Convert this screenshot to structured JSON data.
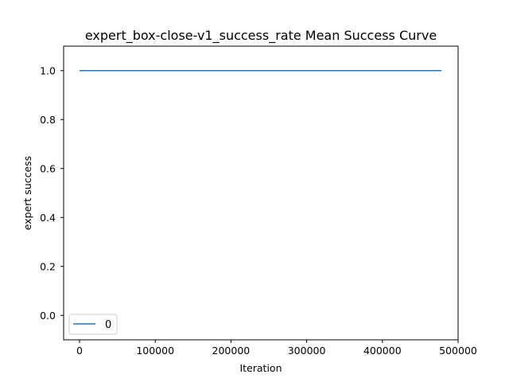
{
  "chart_data": {
    "type": "line",
    "title": "expert_box-close-v1_success_rate Mean Success Curve",
    "xlabel": "Iteration",
    "ylabel": "expert success",
    "xlim": [
      -21000,
      500000
    ],
    "ylim": [
      -0.1,
      1.1
    ],
    "xticks": [
      0,
      100000,
      200000,
      300000,
      400000,
      500000
    ],
    "xtick_labels": [
      "0",
      "100000",
      "200000",
      "300000",
      "400000",
      "500000"
    ],
    "yticks": [
      0.0,
      0.2,
      0.4,
      0.6,
      0.8,
      1.0
    ],
    "ytick_labels": [
      "0.0",
      "0.2",
      "0.4",
      "0.6",
      "0.8",
      "1.0"
    ],
    "grid": false,
    "legend_position": "lower-left",
    "series": [
      {
        "name": "0",
        "color": "#1f77b4",
        "x": [
          0,
          478000
        ],
        "y": [
          1.0,
          1.0
        ]
      }
    ]
  }
}
